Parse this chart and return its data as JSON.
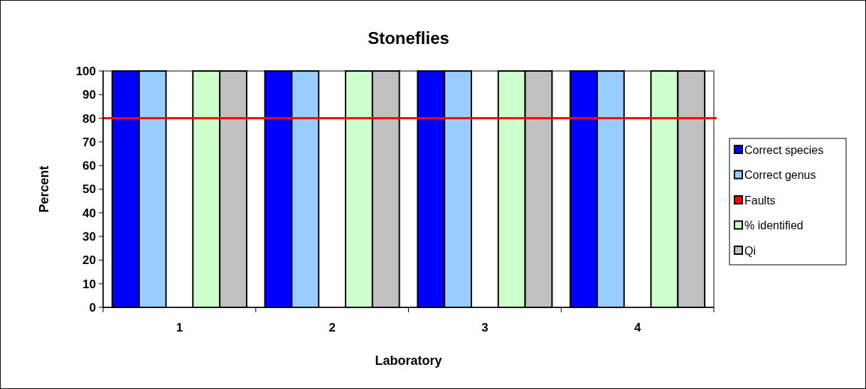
{
  "chart_data": {
    "type": "bar",
    "title": "Stoneflies",
    "xlabel": "Laboratory",
    "ylabel": "Percent",
    "categories": [
      "1",
      "2",
      "3",
      "4"
    ],
    "series": [
      {
        "name": "Correct species",
        "color": "#0000ff",
        "values": [
          100,
          100,
          100,
          100
        ]
      },
      {
        "name": "Correct genus",
        "color": "#99ccff",
        "values": [
          100,
          100,
          100,
          100
        ]
      },
      {
        "name": "Faults",
        "color": "#ff0000",
        "values": [
          0,
          0,
          0,
          0
        ]
      },
      {
        "name": "% identified",
        "color": "#ccffcc",
        "values": [
          100,
          100,
          100,
          100
        ]
      },
      {
        "name": "Qi",
        "color": "#c0c0c0",
        "values": [
          100,
          100,
          100,
          100
        ]
      }
    ],
    "ylim": [
      0,
      100
    ],
    "yticks": [
      0,
      10,
      20,
      30,
      40,
      50,
      60,
      70,
      80,
      90,
      100
    ],
    "ref_lines": [
      {
        "axis": "y",
        "value": 80,
        "color": "#ff0000",
        "line_style": "solid"
      }
    ],
    "legend": "right",
    "grid": false
  }
}
